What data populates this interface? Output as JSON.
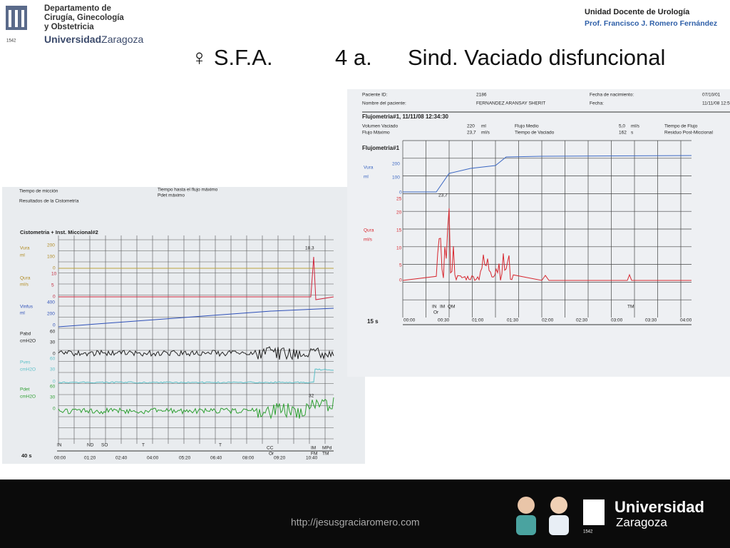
{
  "header": {
    "dept": [
      "Departamento de",
      "Cirugía, Ginecología",
      "y Obstetricia"
    ],
    "university": "Universidad",
    "city": "Zaragoza",
    "founded": "1542",
    "unit": "Unidad Docente de Urología",
    "professor": "Prof. Francisco J.  Romero Fernández"
  },
  "title": {
    "symbol": "♀ S.F.A.",
    "age": "4 a.",
    "diagnosis": "Sind. Vaciado disfuncional"
  },
  "right_photo": {
    "texts": [
      "Paciente ID:",
      "2186",
      "Fecha de nacimiento:",
      "07/10/01",
      "Nombre del paciente:",
      "FERNANDEZ ARANSAY SHERIT",
      "Fecha:",
      "11/11/08 12:5",
      "Flujometria#1,      11/11/08 12:34:30",
      "Volumen Vaciado",
      "220",
      "ml",
      "Flujo Medio",
      "5,0",
      "ml/s",
      "Tiempo de Flujo",
      "Flujo Máximo",
      "23,7",
      "ml/s",
      "Tiempo de Vaciado",
      "162",
      "s",
      "Residuo Post-Miccional",
      "Flujometria#1",
      "Vura",
      "ml",
      "200",
      "100",
      "0",
      "25",
      "20",
      "15",
      "10",
      "5",
      "0",
      "Qura",
      "ml/s",
      "23,7",
      "IN",
      "IM",
      "QM",
      "Or",
      "TM",
      "15 s",
      "00:00",
      "00:30",
      "01:00",
      "01:30",
      "02:00",
      "02:30",
      "03:00",
      "03:30",
      "04:00"
    ]
  },
  "left_photo": {
    "texts": [
      "Tiempo de micción",
      "Resultados de la Cistometría",
      "Tiempo hasta el flujo máximo",
      "Pdet máximo",
      "Cistometria + Inst. Miccional#2",
      "Vura",
      "ml",
      "200",
      "100",
      "0",
      "Qura",
      "ml/s",
      "10",
      "5",
      "0",
      "Vinfus",
      "ml",
      "400",
      "200",
      "0",
      "Pabd",
      "cmH2O",
      "60",
      "30",
      "0",
      "Pves",
      "cmH2O",
      "60",
      "30",
      "0",
      "Pdet",
      "cmH2O",
      "60",
      "30",
      "0",
      "18,3",
      "32",
      "IN",
      "ND",
      "SO",
      "T",
      "T",
      "CC",
      "Or",
      "IM",
      "FM",
      "MPd",
      "TM",
      "40 s",
      "00:00",
      "01:20",
      "02:40",
      "04:00",
      "05:20",
      "06:40",
      "08:00",
      "09:20",
      "10:40"
    ]
  },
  "footer": {
    "url": "http://jesusgraciaromero.com",
    "university": "Universidad",
    "city": "Zaragoza",
    "founded": "1542"
  }
}
